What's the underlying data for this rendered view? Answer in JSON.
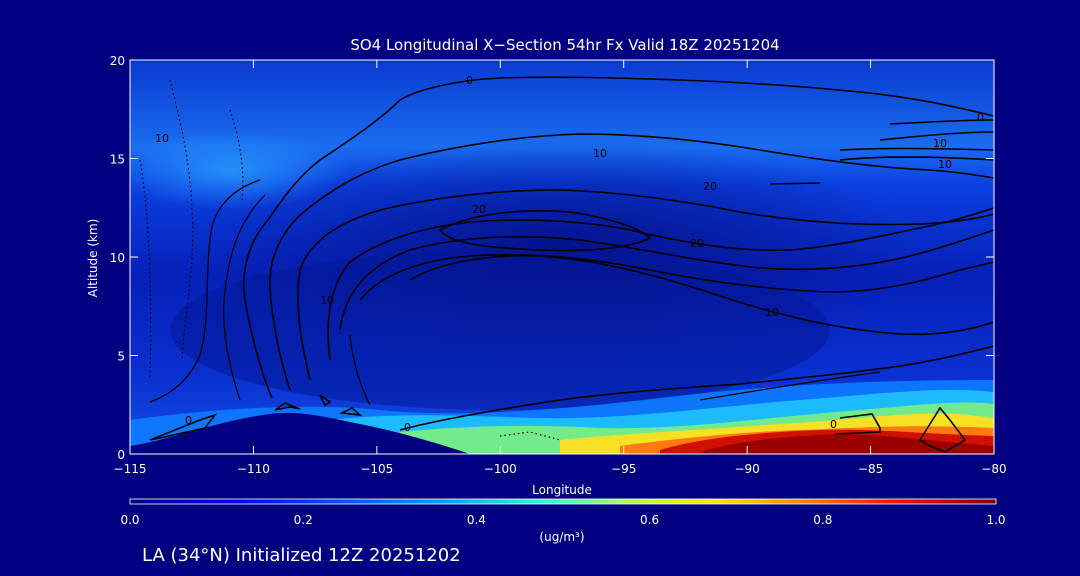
{
  "chart_data": {
    "type": "heatmap",
    "title": "SO4 Longitudinal X−Section 54hr  Fx Valid 18Z 20251204",
    "xlabel": "Longitude",
    "ylabel": "Altitude (km)",
    "xlim": [
      -115,
      -80
    ],
    "ylim": [
      0,
      20
    ],
    "x_ticks": [
      "−115",
      "−110",
      "−105",
      "−100",
      "−95",
      "−90",
      "−85",
      "−80"
    ],
    "x_tick_values": [
      -115,
      -110,
      -105,
      -100,
      -95,
      -90,
      -85,
      -80
    ],
    "y_ticks": [
      "0",
      "5",
      "10",
      "15",
      "20"
    ],
    "y_tick_values": [
      0,
      5,
      10,
      15,
      20
    ],
    "colorbar": {
      "label": "(ug/m³)",
      "range": [
        0.0,
        1.0
      ],
      "ticks": [
        "0.0",
        "0.2",
        "0.4",
        "0.6",
        "0.8",
        "1.0"
      ],
      "tick_values": [
        0.0,
        0.2,
        0.4,
        0.6,
        0.8,
        1.0
      ],
      "colormap": [
        "#00007f",
        "#0000ff",
        "#007fff",
        "#00ffff",
        "#7fff7f",
        "#ffff00",
        "#ff7f00",
        "#ff0000",
        "#7f0000"
      ]
    },
    "contour_labels": [
      "0",
      "10",
      "10",
      "10",
      "10",
      "10",
      "10",
      "20",
      "20",
      "20",
      "0",
      "0",
      "0",
      "0"
    ],
    "grid": false,
    "legend": "bottom"
  },
  "footer": "LA (34°N) Initialized 12Z 20251202",
  "colors": {
    "background": "#000080",
    "terrain": "#000080",
    "text": "#ffffff"
  }
}
